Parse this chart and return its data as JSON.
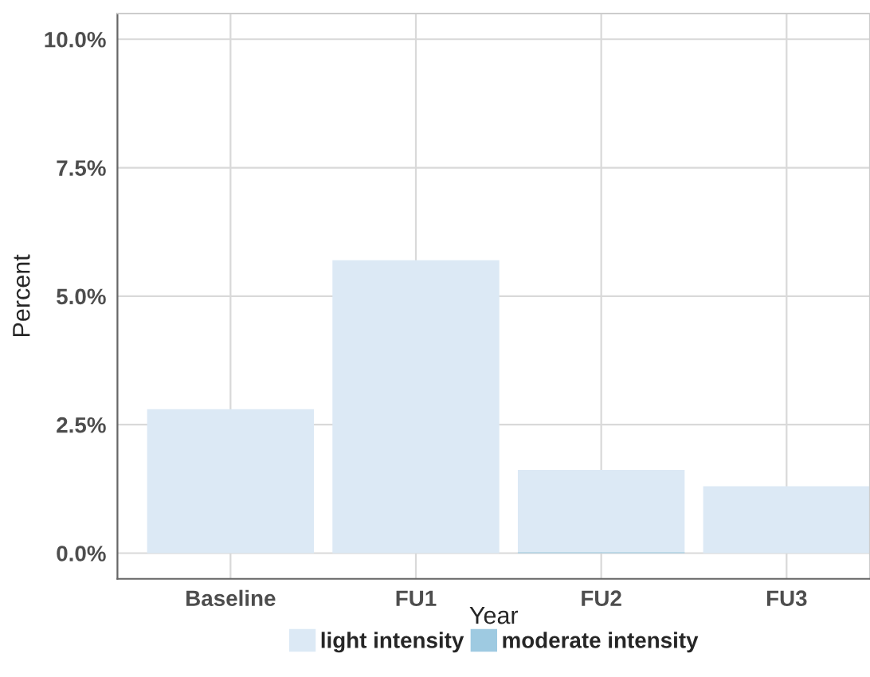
{
  "chart_data": {
    "type": "bar",
    "xlabel": "Year",
    "ylabel": "Percent",
    "stacked": true,
    "categories": [
      "Baseline",
      "FU1",
      "FU2",
      "FU3"
    ],
    "series": [
      {
        "name": "moderate intensity",
        "color": "#9ecae1",
        "values": [
          0,
          0,
          0.02,
          0
        ]
      },
      {
        "name": "light intensity",
        "color": "#dce9f5",
        "values": [
          2.8,
          5.7,
          1.6,
          1.3
        ]
      }
    ],
    "ylim": [
      -0.5,
      10.5
    ],
    "yticks": [
      {
        "value": 0,
        "label": "0.0%"
      },
      {
        "value": 2.5,
        "label": "2.5%"
      },
      {
        "value": 5,
        "label": "5.0%"
      },
      {
        "value": 7.5,
        "label": "7.5%"
      },
      {
        "value": 10,
        "label": "10.0%"
      }
    ],
    "grid": true,
    "legend": "bottom"
  }
}
